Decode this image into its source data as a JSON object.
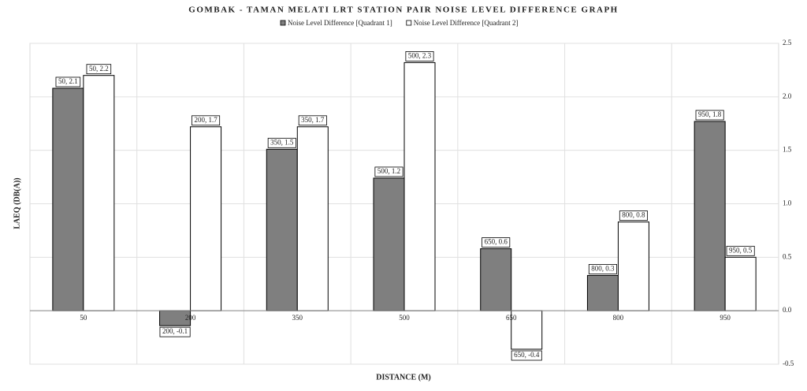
{
  "chart_data": {
    "type": "bar",
    "title": "GOMBAK - TAMAN MELATI LRT STATION PAIR NOISE LEVEL DIFFERENCE GRAPH",
    "x_label": "DISTANCE (M)",
    "y_label": "LAEQ (DB(A))",
    "categories": [
      "50",
      "200",
      "350",
      "500",
      "650",
      "800",
      "950"
    ],
    "series": [
      {
        "name": "Noise Level Difference [Quadrant 1]",
        "color": "#7f7f7f",
        "values": [
          2.08,
          -0.14,
          1.51,
          1.24,
          0.58,
          0.33,
          1.77
        ],
        "value_labels": [
          "50, 2.1",
          "200, -0.1",
          "350, 1.5",
          "500, 1.2",
          "650, 0.6",
          "800, 0.3",
          "950, 1.8"
        ]
      },
      {
        "name": "Noise Level Difference [Quadrant 2]",
        "color": "#ffffff",
        "values": [
          2.2,
          1.72,
          1.72,
          2.32,
          -0.36,
          0.83,
          0.5
        ],
        "value_labels": [
          "50, 2.2",
          "200, 1.7",
          "350, 1.7",
          "500, 2.3",
          "650, -0.4",
          "800, 0.8",
          "950, 0.5"
        ]
      }
    ],
    "ylim": [
      -0.5,
      2.5
    ],
    "yticks": [
      -0.5,
      {
        "value": 0,
        "label": "0.0"
      },
      0.5,
      {
        "value": 1,
        "label": "1.0"
      },
      1.5,
      {
        "value": 2,
        "label": "2.0"
      },
      2.5
    ],
    "grid": true,
    "y_axis_side": "right",
    "legend": "top"
  }
}
